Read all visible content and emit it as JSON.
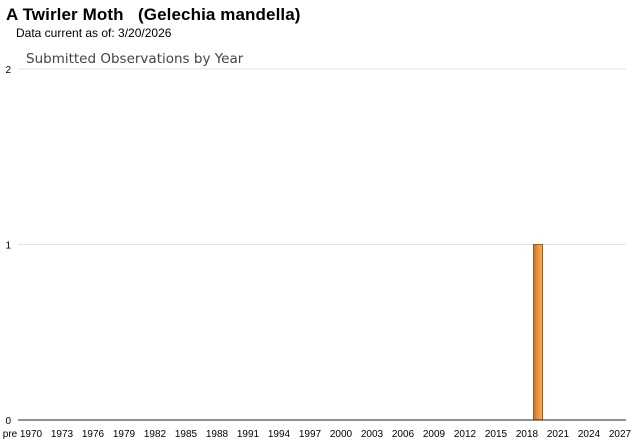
{
  "header": {
    "species_title": "A Twirler Moth   (Gelechia mandella)",
    "data_current": "Data current as of: 3/20/2026"
  },
  "colors": {
    "bar_fill": "#e8923a",
    "bar_edge": "#a45b1a",
    "grid": "#e3e3e3"
  },
  "chart_data": {
    "type": "bar",
    "title": "Submitted Observations by Year",
    "xlabel": "",
    "ylabel": "",
    "ylim": [
      0,
      2
    ],
    "yticks": [
      0,
      1,
      2
    ],
    "grid": true,
    "x_tick_labels": [
      "pre",
      "1970",
      "1973",
      "1976",
      "1979",
      "1982",
      "1985",
      "1988",
      "1991",
      "1994",
      "1997",
      "2000",
      "2003",
      "2006",
      "2009",
      "2012",
      "2015",
      "2018",
      "2021",
      "2024",
      "2027"
    ],
    "categories": [
      "2018"
    ],
    "values": [
      1
    ]
  }
}
